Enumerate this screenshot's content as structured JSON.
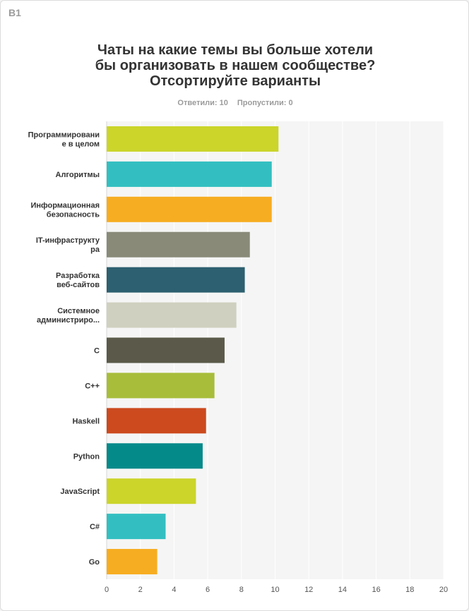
{
  "question_id": "B1",
  "stats": {
    "answered": "Ответили: 10",
    "skipped": "Пропустили: 0"
  },
  "chart_data": {
    "type": "bar",
    "orientation": "horizontal",
    "title_lines": [
      "Чаты на какие темы вы больше хотели",
      "бы организовать в нашем сообществе?",
      "Отсортируйте варианты"
    ],
    "categories": [
      "Программирование в целом",
      "Алгоритмы",
      "Информационная безопасность",
      "IT-инфраструктура",
      "Разработка веб-сайтов",
      "Системное администрирование",
      "C",
      "C++",
      "Haskell",
      "Python",
      "JavaScript",
      "C#",
      "Go"
    ],
    "category_labels": [
      [
        "Программировани",
        "е в целом"
      ],
      [
        "Алгоритмы"
      ],
      [
        "Информационная",
        "безопасность"
      ],
      [
        "IT-инфраструкту",
        "ра"
      ],
      [
        "Разработка",
        "веб-сайтов"
      ],
      [
        "Системное",
        "администриро..."
      ],
      [
        "C"
      ],
      [
        "C++"
      ],
      [
        "Haskell"
      ],
      [
        "Python"
      ],
      [
        "JavaScript"
      ],
      [
        "C#"
      ],
      [
        "Go"
      ]
    ],
    "values": [
      10.2,
      9.8,
      9.8,
      8.5,
      8.2,
      7.7,
      7.0,
      6.4,
      5.9,
      5.7,
      5.3,
      3.5,
      3.0
    ],
    "colors": [
      "#cbd52a",
      "#33bfc1",
      "#f7ad21",
      "#8a8a78",
      "#2d6070",
      "#d0d0c0",
      "#5b5a4a",
      "#a8bd3a",
      "#cc4a1e",
      "#058a8a",
      "#cbd52a",
      "#33bfc1",
      "#f7ad21"
    ],
    "xlim": [
      0,
      20
    ],
    "xticks": [
      0,
      2,
      4,
      6,
      8,
      10,
      12,
      14,
      16,
      18,
      20
    ],
    "grid": true
  }
}
